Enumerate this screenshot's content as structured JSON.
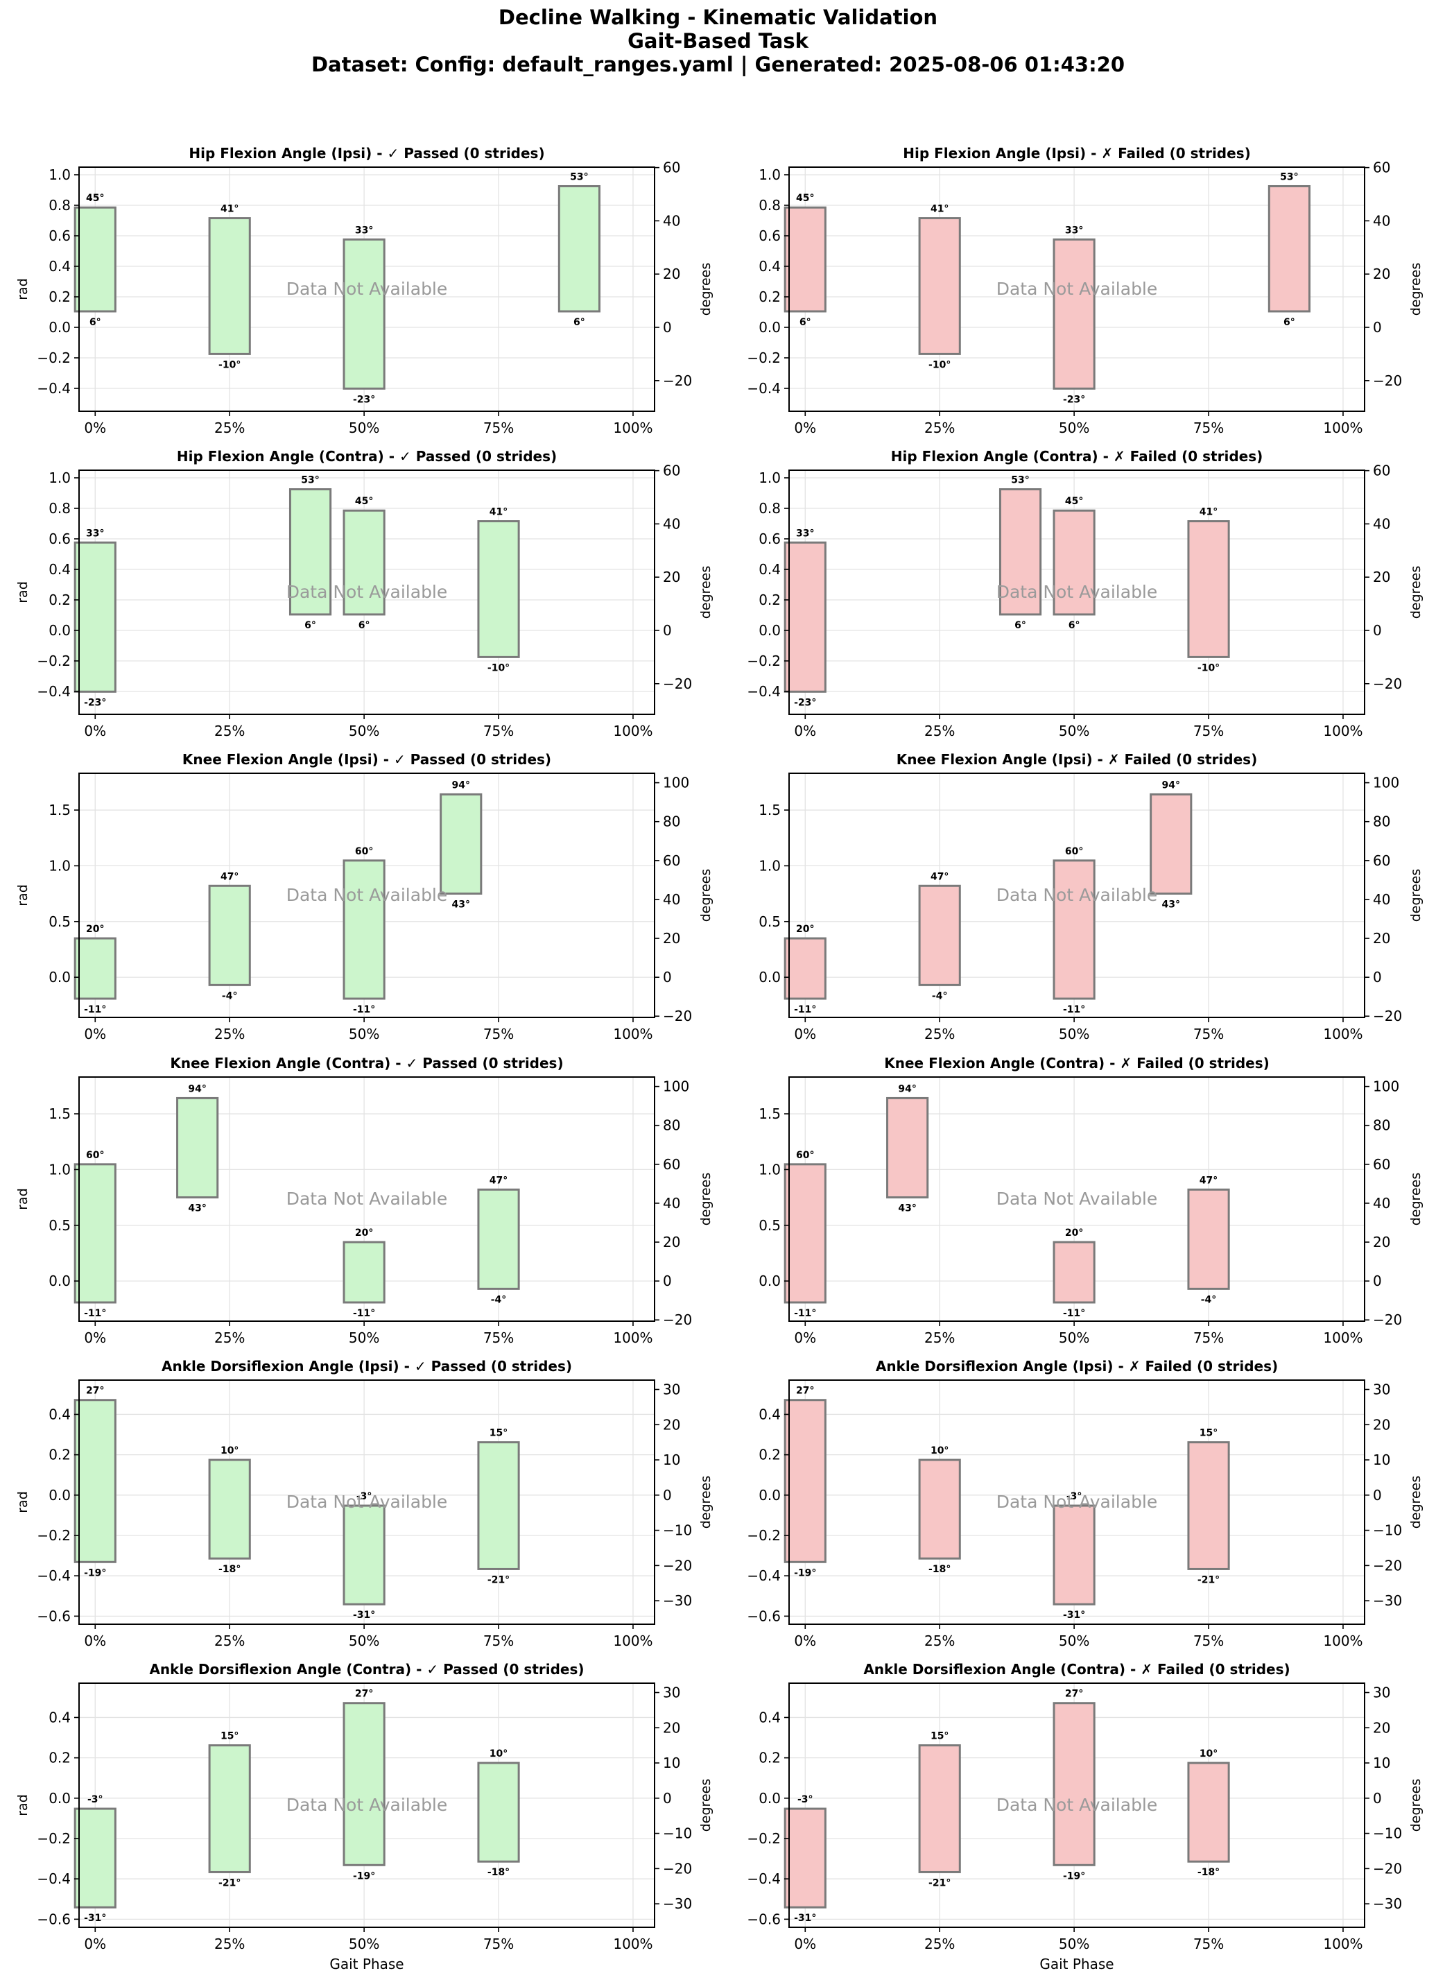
{
  "header": {
    "title": "Decline Walking - Kinematic Validation",
    "subtitle": "Gait-Based Task",
    "dataset_line": "Dataset: Config: default_ranges.yaml | Generated: 2025-08-06 01:43:20"
  },
  "common": {
    "no_data_text": "Data Not Available",
    "x_label": "Gait Phase",
    "y_label_left": "rad",
    "y_label_right": "degrees",
    "x_ticks": [
      "0%",
      "25%",
      "50%",
      "75%",
      "100%"
    ],
    "passed_fill": "#ccf5cc",
    "failed_fill": "#f7c6c6",
    "box_edge": "#7a7a7a"
  },
  "chart_data": [
    {
      "type": "bar",
      "title": "Hip Flexion Angle (Ipsi) - ✓ Passed (0 strides)",
      "status": "passed",
      "xlabel": "",
      "ylabel": "rad",
      "ylim": [
        -0.55,
        1.05
      ],
      "yticks": [
        -0.4,
        -0.2,
        0.0,
        0.2,
        0.4,
        0.6,
        0.8,
        1.0
      ],
      "ylabel_right": "degrees",
      "yticks_right": [
        -20,
        0,
        20,
        40,
        60
      ],
      "ranges": [
        {
          "phase": 0,
          "min_deg": 6,
          "max_deg": 45,
          "min_label": "6°",
          "max_label": "45°"
        },
        {
          "phase": 25,
          "min_deg": -10,
          "max_deg": 41,
          "min_label": "-10°",
          "max_label": "41°"
        },
        {
          "phase": 50,
          "min_deg": -23,
          "max_deg": 33,
          "min_label": "-23°",
          "max_label": "33°"
        },
        {
          "phase": 90,
          "min_deg": 6,
          "max_deg": 53,
          "min_label": "6°",
          "max_label": "53°"
        }
      ]
    },
    {
      "type": "bar",
      "title": "Hip Flexion Angle (Ipsi) - ✗ Failed (0 strides)",
      "status": "failed",
      "xlabel": "",
      "ylabel": "",
      "ylim": [
        -0.55,
        1.05
      ],
      "yticks": [
        -0.4,
        -0.2,
        0.0,
        0.2,
        0.4,
        0.6,
        0.8,
        1.0
      ],
      "ylabel_right": "degrees",
      "yticks_right": [
        -20,
        0,
        20,
        40,
        60
      ],
      "ranges": [
        {
          "phase": 0,
          "min_deg": 6,
          "max_deg": 45,
          "min_label": "6°",
          "max_label": "45°"
        },
        {
          "phase": 25,
          "min_deg": -10,
          "max_deg": 41,
          "min_label": "-10°",
          "max_label": "41°"
        },
        {
          "phase": 50,
          "min_deg": -23,
          "max_deg": 33,
          "min_label": "-23°",
          "max_label": "33°"
        },
        {
          "phase": 90,
          "min_deg": 6,
          "max_deg": 53,
          "min_label": "6°",
          "max_label": "53°"
        }
      ]
    },
    {
      "type": "bar",
      "title": "Hip Flexion Angle (Contra) - ✓ Passed (0 strides)",
      "status": "passed",
      "xlabel": "",
      "ylabel": "rad",
      "ylim": [
        -0.55,
        1.05
      ],
      "yticks": [
        -0.4,
        -0.2,
        0.0,
        0.2,
        0.4,
        0.6,
        0.8,
        1.0
      ],
      "ylabel_right": "degrees",
      "yticks_right": [
        -20,
        0,
        20,
        40,
        60
      ],
      "ranges": [
        {
          "phase": 0,
          "min_deg": -23,
          "max_deg": 33,
          "min_label": "-23°",
          "max_label": "33°"
        },
        {
          "phase": 40,
          "min_deg": 6,
          "max_deg": 53,
          "min_label": "6°",
          "max_label": "53°"
        },
        {
          "phase": 50,
          "min_deg": 6,
          "max_deg": 45,
          "min_label": "6°",
          "max_label": "45°"
        },
        {
          "phase": 75,
          "min_deg": -10,
          "max_deg": 41,
          "min_label": "-10°",
          "max_label": "41°"
        }
      ]
    },
    {
      "type": "bar",
      "title": "Hip Flexion Angle (Contra) - ✗ Failed (0 strides)",
      "status": "failed",
      "xlabel": "",
      "ylabel": "",
      "ylim": [
        -0.55,
        1.05
      ],
      "yticks": [
        -0.4,
        -0.2,
        0.0,
        0.2,
        0.4,
        0.6,
        0.8,
        1.0
      ],
      "ylabel_right": "degrees",
      "yticks_right": [
        -20,
        0,
        20,
        40,
        60
      ],
      "ranges": [
        {
          "phase": 0,
          "min_deg": -23,
          "max_deg": 33,
          "min_label": "-23°",
          "max_label": "33°"
        },
        {
          "phase": 40,
          "min_deg": 6,
          "max_deg": 53,
          "min_label": "6°",
          "max_label": "53°"
        },
        {
          "phase": 50,
          "min_deg": 6,
          "max_deg": 45,
          "min_label": "6°",
          "max_label": "45°"
        },
        {
          "phase": 75,
          "min_deg": -10,
          "max_deg": 41,
          "min_label": "-10°",
          "max_label": "41°"
        }
      ]
    },
    {
      "type": "bar",
      "title": "Knee Flexion Angle (Ipsi) - ✓ Passed (0 strides)",
      "status": "passed",
      "xlabel": "",
      "ylabel": "rad",
      "ylim": [
        -0.36,
        1.83
      ],
      "yticks": [
        0.0,
        0.5,
        1.0,
        1.5
      ],
      "ylabel_right": "degrees",
      "yticks_right": [
        -20,
        0,
        20,
        40,
        60,
        80,
        100
      ],
      "ranges": [
        {
          "phase": 0,
          "min_deg": -11,
          "max_deg": 20,
          "min_label": "-11°",
          "max_label": "20°"
        },
        {
          "phase": 25,
          "min_deg": -4,
          "max_deg": 47,
          "min_label": "-4°",
          "max_label": "47°"
        },
        {
          "phase": 50,
          "min_deg": -11,
          "max_deg": 60,
          "min_label": "-11°",
          "max_label": "60°"
        },
        {
          "phase": 68,
          "min_deg": 43,
          "max_deg": 94,
          "min_label": "43°",
          "max_label": "94°"
        }
      ]
    },
    {
      "type": "bar",
      "title": "Knee Flexion Angle (Ipsi) - ✗ Failed (0 strides)",
      "status": "failed",
      "xlabel": "",
      "ylabel": "",
      "ylim": [
        -0.36,
        1.83
      ],
      "yticks": [
        0.0,
        0.5,
        1.0,
        1.5
      ],
      "ylabel_right": "degrees",
      "yticks_right": [
        -20,
        0,
        20,
        40,
        60,
        80,
        100
      ],
      "ranges": [
        {
          "phase": 0,
          "min_deg": -11,
          "max_deg": 20,
          "min_label": "-11°",
          "max_label": "20°"
        },
        {
          "phase": 25,
          "min_deg": -4,
          "max_deg": 47,
          "min_label": "-4°",
          "max_label": "47°"
        },
        {
          "phase": 50,
          "min_deg": -11,
          "max_deg": 60,
          "min_label": "-11°",
          "max_label": "60°"
        },
        {
          "phase": 68,
          "min_deg": 43,
          "max_deg": 94,
          "min_label": "43°",
          "max_label": "94°"
        }
      ]
    },
    {
      "type": "bar",
      "title": "Knee Flexion Angle (Contra) - ✓ Passed (0 strides)",
      "status": "passed",
      "xlabel": "",
      "ylabel": "rad",
      "ylim": [
        -0.36,
        1.83
      ],
      "yticks": [
        0.0,
        0.5,
        1.0,
        1.5
      ],
      "ylabel_right": "degrees",
      "yticks_right": [
        -20,
        0,
        20,
        40,
        60,
        80,
        100
      ],
      "ranges": [
        {
          "phase": 0,
          "min_deg": -11,
          "max_deg": 60,
          "min_label": "-11°",
          "max_label": "60°"
        },
        {
          "phase": 19,
          "min_deg": 43,
          "max_deg": 94,
          "min_label": "43°",
          "max_label": "94°"
        },
        {
          "phase": 50,
          "min_deg": -11,
          "max_deg": 20,
          "min_label": "-11°",
          "max_label": "20°"
        },
        {
          "phase": 75,
          "min_deg": -4,
          "max_deg": 47,
          "min_label": "-4°",
          "max_label": "47°"
        }
      ]
    },
    {
      "type": "bar",
      "title": "Knee Flexion Angle (Contra) - ✗ Failed (0 strides)",
      "status": "failed",
      "xlabel": "",
      "ylabel": "",
      "ylim": [
        -0.36,
        1.83
      ],
      "yticks": [
        0.0,
        0.5,
        1.0,
        1.5
      ],
      "ylabel_right": "degrees",
      "yticks_right": [
        -20,
        0,
        20,
        40,
        60,
        80,
        100
      ],
      "ranges": [
        {
          "phase": 0,
          "min_deg": -11,
          "max_deg": 60,
          "min_label": "-11°",
          "max_label": "60°"
        },
        {
          "phase": 19,
          "min_deg": 43,
          "max_deg": 94,
          "min_label": "43°",
          "max_label": "94°"
        },
        {
          "phase": 50,
          "min_deg": -11,
          "max_deg": 20,
          "min_label": "-11°",
          "max_label": "20°"
        },
        {
          "phase": 75,
          "min_deg": -4,
          "max_deg": 47,
          "min_label": "-4°",
          "max_label": "47°"
        }
      ]
    },
    {
      "type": "bar",
      "title": "Ankle Dorsiflexion Angle (Ipsi) - ✓ Passed (0 strides)",
      "status": "passed",
      "xlabel": "",
      "ylabel": "rad",
      "ylim": [
        -0.64,
        0.57
      ],
      "yticks": [
        -0.6,
        -0.4,
        -0.2,
        0.0,
        0.2,
        0.4
      ],
      "ylabel_right": "degrees",
      "yticks_right": [
        -30,
        -20,
        -10,
        0,
        10,
        20,
        30
      ],
      "ranges": [
        {
          "phase": 0,
          "min_deg": -19,
          "max_deg": 27,
          "min_label": "-19°",
          "max_label": "27°"
        },
        {
          "phase": 25,
          "min_deg": -18,
          "max_deg": 10,
          "min_label": "-18°",
          "max_label": "10°"
        },
        {
          "phase": 50,
          "min_deg": -31,
          "max_deg": -3,
          "min_label": "-31°",
          "max_label": "-3°"
        },
        {
          "phase": 75,
          "min_deg": -21,
          "max_deg": 15,
          "min_label": "-21°",
          "max_label": "15°"
        }
      ]
    },
    {
      "type": "bar",
      "title": "Ankle Dorsiflexion Angle (Ipsi) - ✗ Failed (0 strides)",
      "status": "failed",
      "xlabel": "",
      "ylabel": "",
      "ylim": [
        -0.64,
        0.57
      ],
      "yticks": [
        -0.6,
        -0.4,
        -0.2,
        0.0,
        0.2,
        0.4
      ],
      "ylabel_right": "degrees",
      "yticks_right": [
        -30,
        -20,
        -10,
        0,
        10,
        20,
        30
      ],
      "ranges": [
        {
          "phase": 0,
          "min_deg": -19,
          "max_deg": 27,
          "min_label": "-19°",
          "max_label": "27°"
        },
        {
          "phase": 25,
          "min_deg": -18,
          "max_deg": 10,
          "min_label": "-18°",
          "max_label": "10°"
        },
        {
          "phase": 50,
          "min_deg": -31,
          "max_deg": -3,
          "min_label": "-31°",
          "max_label": "-3°"
        },
        {
          "phase": 75,
          "min_deg": -21,
          "max_deg": 15,
          "min_label": "-21°",
          "max_label": "15°"
        }
      ]
    },
    {
      "type": "bar",
      "title": "Ankle Dorsiflexion Angle (Contra) - ✓ Passed (0 strides)",
      "status": "passed",
      "xlabel": "Gait Phase",
      "ylabel": "rad",
      "ylim": [
        -0.64,
        0.57
      ],
      "yticks": [
        -0.6,
        -0.4,
        -0.2,
        0.0,
        0.2,
        0.4
      ],
      "ylabel_right": "degrees",
      "yticks_right": [
        -30,
        -20,
        -10,
        0,
        10,
        20,
        30
      ],
      "ranges": [
        {
          "phase": 0,
          "min_deg": -31,
          "max_deg": -3,
          "min_label": "-31°",
          "max_label": "-3°"
        },
        {
          "phase": 25,
          "min_deg": -21,
          "max_deg": 15,
          "min_label": "-21°",
          "max_label": "15°"
        },
        {
          "phase": 50,
          "min_deg": -19,
          "max_deg": 27,
          "min_label": "-19°",
          "max_label": "27°"
        },
        {
          "phase": 75,
          "min_deg": -18,
          "max_deg": 10,
          "min_label": "-18°",
          "max_label": "10°"
        }
      ]
    },
    {
      "type": "bar",
      "title": "Ankle Dorsiflexion Angle (Contra) - ✗ Failed (0 strides)",
      "status": "failed",
      "xlabel": "Gait Phase",
      "ylabel": "",
      "ylim": [
        -0.64,
        0.57
      ],
      "yticks": [
        -0.6,
        -0.4,
        -0.2,
        0.0,
        0.2,
        0.4
      ],
      "ylabel_right": "degrees",
      "yticks_right": [
        -30,
        -20,
        -10,
        0,
        10,
        20,
        30
      ],
      "ranges": [
        {
          "phase": 0,
          "min_deg": -31,
          "max_deg": -3,
          "min_label": "-31°",
          "max_label": "-3°"
        },
        {
          "phase": 25,
          "min_deg": -21,
          "max_deg": 15,
          "min_label": "-21°",
          "max_label": "15°"
        },
        {
          "phase": 50,
          "min_deg": -19,
          "max_deg": 27,
          "min_label": "-19°",
          "max_label": "27°"
        },
        {
          "phase": 75,
          "min_deg": -18,
          "max_deg": 10,
          "min_label": "-18°",
          "max_label": "10°"
        }
      ]
    }
  ]
}
